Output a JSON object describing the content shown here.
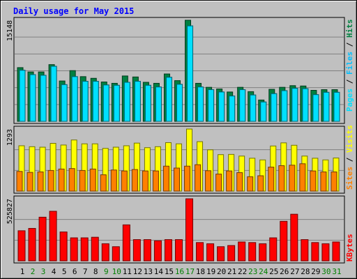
{
  "chart_data": {
    "type": "bar",
    "title": "Daily usage for May 2015",
    "categories": [
      "1",
      "2",
      "3",
      "4",
      "5",
      "6",
      "7",
      "8",
      "9",
      "10",
      "11",
      "12",
      "13",
      "14",
      "15",
      "16",
      "17",
      "18",
      "19",
      "20",
      "21",
      "22",
      "23",
      "24",
      "25",
      "26",
      "27",
      "28",
      "29",
      "30",
      "31"
    ],
    "weekend_days": [
      "2",
      "3",
      "9",
      "10",
      "16",
      "17",
      "23",
      "24",
      "30",
      "31"
    ],
    "panels": [
      {
        "max_label": "15148",
        "ylim": [
          0,
          15148
        ],
        "series": [
          {
            "name": "Hits",
            "color": "#008040",
            "values": [
              8050,
              7400,
              7400,
              8500,
              6050,
              7600,
              6700,
              6450,
              5900,
              5700,
              6800,
              6650,
              5850,
              5700,
              7100,
              6100,
              15148,
              5700,
              5100,
              4850,
              4400,
              5100,
              4450,
              3200,
              4800,
              5100,
              5350,
              5300,
              4650,
              4750,
              4750
            ]
          },
          {
            "name": "Files",
            "color": "#00c0ff",
            "values": [
              7650,
              7000,
              6900,
              8250,
              5500,
              6700,
              6000,
              6000,
              5450,
              5400,
              5850,
              6000,
              5400,
              5150,
              6600,
              5550,
              14300,
              5150,
              4750,
              4400,
              3800,
              4750,
              3950,
              2900,
              4150,
              4600,
              4950,
              4900,
              4000,
              4350,
              4350
            ]
          },
          {
            "name": "Pages",
            "color": "#00e0ff",
            "values": [
              7650,
              7000,
              6900,
              8250,
              5500,
              6700,
              6000,
              6000,
              5450,
              5400,
              5850,
              6000,
              5400,
              5150,
              6600,
              5550,
              14300,
              5150,
              4750,
              4400,
              3800,
              4750,
              3950,
              2900,
              4150,
              4600,
              4950,
              4900,
              4000,
              4350,
              4350
            ]
          }
        ]
      },
      {
        "max_label": "1293",
        "ylim": [
          0,
          1293
        ],
        "series": [
          {
            "name": "Visits",
            "color": "#ffff00",
            "values": [
              945,
              925,
              915,
              995,
              960,
              1065,
              985,
              985,
              890,
              915,
              945,
              1000,
              905,
              925,
              1010,
              985,
              1293,
              1030,
              860,
              760,
              765,
              730,
              685,
              650,
              940,
              1005,
              955,
              730,
              685,
              650,
              690
            ]
          },
          {
            "name": "Sites",
            "color": "#ff8000",
            "values": [
              410,
              390,
              400,
              430,
              460,
              470,
              430,
              460,
              340,
              440,
              420,
              450,
              420,
              420,
              520,
              480,
              520,
              550,
              425,
              355,
              420,
              385,
              300,
              320,
              500,
              530,
              540,
              570,
              420,
              400,
              400
            ]
          }
        ]
      },
      {
        "max_label": "525827",
        "ylim": [
          0,
          525827
        ],
        "series": [
          {
            "name": "KBytes",
            "color": "#ff0000",
            "values": [
              255000,
              275000,
              370000,
              420000,
              245000,
              195000,
              195000,
              200000,
              145000,
              120000,
              305000,
              180000,
              180000,
              170000,
              180000,
              180000,
              525827,
              155000,
              145000,
              120000,
              130000,
              160000,
              155000,
              145000,
              195000,
              335000,
              395000,
              180000,
              155000,
              145000,
              160000
            ]
          }
        ]
      }
    ],
    "right_legend": [
      {
        "text": "Pages",
        "color": "#00e0ff",
        "panel": 0
      },
      {
        "text": "Files",
        "color": "#00c0ff",
        "panel": 0
      },
      {
        "text": "Hits",
        "color": "#008040",
        "panel": 0
      },
      {
        "text": "Sites",
        "color": "#ff8000",
        "panel": 1
      },
      {
        "text": "Visits",
        "color": "#ffff00",
        "panel": 1
      },
      {
        "text": "KBytes",
        "color": "#ff0000",
        "panel": 2
      }
    ],
    "separator": " / ",
    "colors": {
      "background": "#c0c0c0",
      "title": "#0000ff",
      "weekday_label": "#000000",
      "weekend_label": "#008000",
      "gridline": "#808080"
    },
    "grid": true
  }
}
